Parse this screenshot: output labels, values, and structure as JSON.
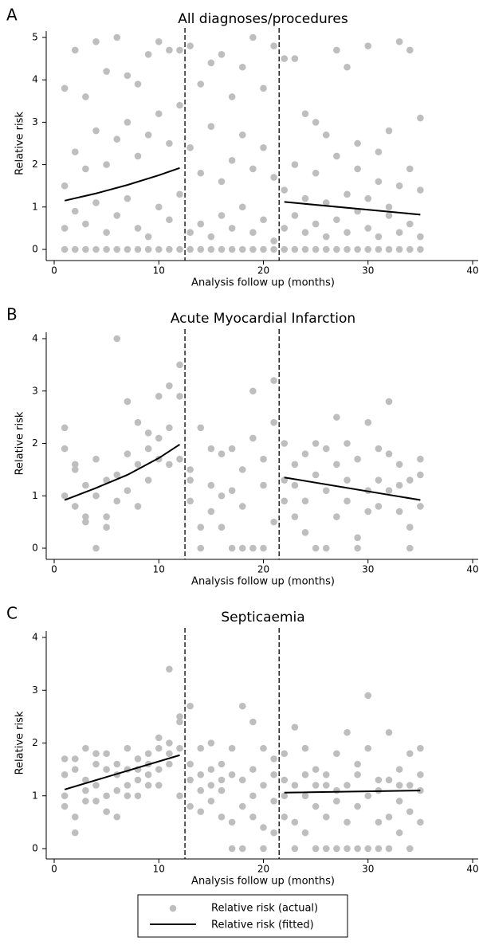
{
  "chart_data": [
    {
      "type": "scatter",
      "panel": "A",
      "title": "All diagnoses/procedures",
      "x_label": "Analysis follow up (months)",
      "y_label": "Relative risk",
      "xlim": [
        0,
        40
      ],
      "xticks": [
        0,
        10,
        20,
        30,
        40
      ],
      "ylim": [
        0,
        5
      ],
      "yticks": [
        0,
        1,
        2,
        3,
        4,
        5
      ],
      "vlines": [
        12.5,
        21.5
      ],
      "series": [
        {
          "name": "Relative risk (actual)",
          "kind": "points",
          "color": "#bebebe",
          "x": [
            1,
            1,
            1,
            1,
            2,
            2,
            2,
            2,
            3,
            3,
            3,
            3,
            4,
            4,
            4,
            4,
            5,
            5,
            5,
            5,
            6,
            6,
            6,
            6,
            7,
            7,
            7,
            7,
            8,
            8,
            8,
            8,
            9,
            9,
            9,
            9,
            10,
            10,
            10,
            10,
            11,
            11,
            11,
            11,
            12,
            12,
            12,
            12,
            13,
            13,
            13,
            13,
            14,
            14,
            14,
            14,
            15,
            15,
            15,
            15,
            16,
            16,
            16,
            16,
            17,
            17,
            17,
            17,
            18,
            18,
            18,
            18,
            19,
            19,
            19,
            19,
            20,
            20,
            20,
            20,
            21,
            21,
            21,
            21,
            22,
            22,
            22,
            22,
            23,
            23,
            23,
            23,
            24,
            24,
            24,
            24,
            25,
            25,
            25,
            25,
            26,
            26,
            26,
            26,
            27,
            27,
            27,
            27,
            28,
            28,
            28,
            28,
            29,
            29,
            29,
            29,
            30,
            30,
            30,
            30,
            31,
            31,
            31,
            31,
            32,
            32,
            32,
            32,
            33,
            33,
            33,
            33,
            34,
            34,
            34,
            34,
            35,
            35,
            35,
            35
          ],
          "values": [
            0,
            0.5,
            1.5,
            3.8,
            0,
            0.9,
            2.3,
            4.7,
            0,
            0.6,
            1.9,
            3.6,
            0,
            1.1,
            2.8,
            4.9,
            0,
            0.4,
            2.0,
            4.2,
            0,
            0.8,
            2.6,
            5.0,
            0,
            1.2,
            3.0,
            4.1,
            0,
            0.5,
            2.2,
            3.9,
            0,
            0.3,
            2.7,
            4.6,
            0,
            1.0,
            3.2,
            4.9,
            0,
            0.7,
            2.5,
            4.7,
            0,
            1.3,
            3.4,
            4.7,
            0,
            0.4,
            2.4,
            4.8,
            0,
            0.6,
            1.8,
            3.9,
            0,
            0.3,
            2.9,
            4.4,
            0,
            0.8,
            1.6,
            4.6,
            0,
            0.5,
            2.1,
            3.6,
            0,
            1.0,
            2.7,
            4.3,
            0,
            0.4,
            1.9,
            5.0,
            0,
            0.7,
            2.4,
            3.8,
            0,
            0.2,
            1.7,
            4.8,
            0,
            0.5,
            1.4,
            4.5,
            0,
            0.8,
            2.0,
            4.5,
            0,
            0.4,
            1.2,
            3.2,
            0,
            0.6,
            1.8,
            3.0,
            0,
            0.3,
            1.1,
            2.7,
            0,
            0.7,
            2.2,
            4.7,
            0,
            0.4,
            1.3,
            4.3,
            0,
            0.9,
            1.9,
            2.5,
            0,
            0.5,
            1.2,
            4.8,
            0,
            0.3,
            1.6,
            2.3,
            0,
            0.8,
            1.0,
            2.8,
            0,
            0.4,
            1.5,
            4.9,
            0,
            0.6,
            1.9,
            4.7,
            0,
            0.3,
            1.4,
            3.1
          ]
        },
        {
          "name": "Relative risk (fitted)",
          "kind": "line",
          "color": "#000000",
          "x": [
            1,
            4,
            7,
            10,
            12,
            null,
            22,
            35
          ],
          "values": [
            1.15,
            1.32,
            1.52,
            1.75,
            1.92,
            null,
            1.12,
            0.82
          ]
        }
      ]
    },
    {
      "type": "scatter",
      "panel": "B",
      "title": "Acute Myocardial Infarction",
      "x_label": "Analysis follow up (months)",
      "y_label": "Relative risk",
      "xlim": [
        0,
        40
      ],
      "xticks": [
        0,
        10,
        20,
        30,
        40
      ],
      "ylim": [
        0,
        4
      ],
      "yticks": [
        0,
        1,
        2,
        3,
        4
      ],
      "vlines": [
        12.5,
        21.5
      ],
      "series": [
        {
          "kind": "points",
          "color": "#bebebe",
          "x": [
            1,
            1,
            1,
            2,
            2,
            2,
            3,
            3,
            3,
            4,
            4,
            4,
            5,
            5,
            5,
            6,
            6,
            6,
            7,
            7,
            7,
            8,
            8,
            8,
            9,
            9,
            9,
            10,
            10,
            10,
            11,
            11,
            11,
            12,
            12,
            12,
            13,
            13,
            13,
            14,
            14,
            14,
            15,
            15,
            15,
            16,
            16,
            16,
            17,
            17,
            17,
            18,
            18,
            18,
            19,
            19,
            19,
            20,
            20,
            20,
            21,
            21,
            21,
            22,
            22,
            22,
            23,
            23,
            23,
            24,
            24,
            24,
            25,
            25,
            25,
            26,
            26,
            26,
            27,
            27,
            27,
            28,
            28,
            28,
            29,
            29,
            29,
            30,
            30,
            30,
            31,
            31,
            31,
            32,
            32,
            32,
            33,
            33,
            33,
            34,
            34,
            34,
            35,
            35,
            35
          ],
          "values": [
            1.0,
            2.3,
            1.9,
            0.8,
            1.5,
            1.6,
            0.5,
            1.2,
            0.6,
            0,
            1.0,
            1.7,
            0.4,
            0.6,
            1.3,
            4.0,
            1.4,
            0.9,
            2.8,
            1.1,
            1.8,
            2.4,
            0.8,
            1.6,
            1.9,
            1.3,
            2.2,
            2.9,
            1.7,
            2.1,
            3.1,
            2.3,
            1.6,
            3.5,
            2.9,
            1.7,
            1.5,
            0.9,
            1.3,
            2.3,
            0.4,
            0,
            1.9,
            1.2,
            0.7,
            1.8,
            1.0,
            0.4,
            0,
            1.1,
            1.9,
            0,
            1.5,
            0.8,
            0,
            3.0,
            2.1,
            1.2,
            1.7,
            0,
            3.2,
            2.4,
            0.5,
            2.0,
            1.3,
            0.9,
            1.6,
            0.6,
            1.2,
            0.3,
            1.8,
            0.9,
            2.0,
            0,
            1.4,
            1.9,
            0,
            1.1,
            2.5,
            1.6,
            0.6,
            2.0,
            0.9,
            1.3,
            0.2,
            1.7,
            0,
            2.4,
            0.7,
            1.1,
            1.3,
            0.8,
            1.9,
            2.8,
            1.8,
            1.1,
            1.6,
            0.7,
            1.2,
            0,
            0.4,
            1.3,
            1.7,
            1.4,
            0.8
          ]
        },
        {
          "kind": "line",
          "color": "#000000",
          "x": [
            1,
            4,
            7,
            10,
            12,
            null,
            22,
            35
          ],
          "values": [
            0.92,
            1.15,
            1.4,
            1.72,
            1.98,
            null,
            1.35,
            0.92
          ]
        }
      ]
    },
    {
      "type": "scatter",
      "panel": "C",
      "title": "Septicaemia",
      "x_label": "Analysis follow up (months)",
      "y_label": "Relative risk",
      "xlim": [
        0,
        40
      ],
      "xticks": [
        0,
        10,
        20,
        30,
        40
      ],
      "ylim": [
        0,
        4
      ],
      "yticks": [
        0,
        1,
        2,
        3,
        4
      ],
      "vlines": [
        12.5,
        21.5
      ],
      "series": [
        {
          "kind": "points",
          "color": "#bebebe",
          "x": [
            1,
            1,
            1,
            1,
            2,
            2,
            2,
            2,
            3,
            3,
            3,
            3,
            4,
            4,
            4,
            4,
            5,
            5,
            5,
            5,
            6,
            6,
            6,
            6,
            7,
            7,
            7,
            7,
            8,
            8,
            8,
            8,
            9,
            9,
            9,
            9,
            10,
            10,
            10,
            10,
            11,
            11,
            11,
            11,
            12,
            12,
            12,
            12,
            13,
            13,
            13,
            13,
            14,
            14,
            14,
            14,
            15,
            15,
            15,
            15,
            16,
            16,
            16,
            16,
            17,
            17,
            17,
            17,
            18,
            18,
            18,
            18,
            19,
            19,
            19,
            19,
            20,
            20,
            20,
            20,
            21,
            21,
            21,
            21,
            22,
            22,
            22,
            22,
            23,
            23,
            23,
            23,
            24,
            24,
            24,
            24,
            25,
            25,
            25,
            25,
            26,
            26,
            26,
            26,
            27,
            27,
            27,
            27,
            28,
            28,
            28,
            28,
            29,
            29,
            29,
            29,
            30,
            30,
            30,
            30,
            31,
            31,
            31,
            31,
            32,
            32,
            32,
            32,
            33,
            33,
            33,
            33,
            34,
            34,
            34,
            34,
            35,
            35,
            35,
            35
          ],
          "values": [
            1.7,
            1.4,
            1.0,
            0.8,
            0.3,
            1.5,
            1.7,
            0.6,
            1.9,
            1.3,
            1.1,
            0.9,
            1.6,
            1.2,
            0.9,
            1.8,
            1.5,
            1.0,
            1.8,
            0.7,
            1.1,
            1.4,
            0.6,
            1.6,
            1.9,
            1.5,
            1.2,
            1.0,
            1.7,
            1.3,
            1.0,
            1.5,
            1.8,
            1.4,
            1.2,
            1.6,
            2.1,
            1.5,
            1.9,
            1.2,
            3.4,
            2.0,
            1.6,
            1.8,
            2.5,
            1.9,
            1.0,
            2.4,
            2.7,
            1.6,
            1.3,
            0.8,
            1.9,
            1.4,
            1.1,
            0.7,
            2.0,
            1.5,
            1.2,
            0.9,
            1.6,
            1.1,
            0.6,
            1.3,
            1.9,
            0.5,
            0,
            1.4,
            2.7,
            1.3,
            0.8,
            0,
            2.4,
            1.5,
            0.6,
            1.0,
            1.9,
            1.2,
            0,
            0.4,
            1.4,
            0.9,
            0.3,
            1.7,
            1.3,
            1.0,
            0.6,
            1.8,
            2.3,
            1.2,
            0.5,
            0,
            1.9,
            1.0,
            0.3,
            1.4,
            1.5,
            0,
            0.8,
            1.2,
            1.2,
            0.6,
            0,
            1.4,
            1.8,
            0.9,
            0,
            1.1,
            2.2,
            1.2,
            0.5,
            0,
            1.4,
            0.8,
            0,
            1.6,
            2.9,
            1.9,
            1.0,
            0,
            1.3,
            0.5,
            0,
            1.1,
            2.2,
            1.3,
            0.6,
            0,
            1.5,
            0.9,
            0.3,
            1.2,
            1.8,
            1.2,
            0,
            0.7,
            1.9,
            1.4,
            0.5,
            1.1
          ]
        },
        {
          "kind": "line",
          "color": "#000000",
          "x": [
            1,
            12,
            null,
            22,
            35
          ],
          "values": [
            1.12,
            1.77,
            null,
            1.06,
            1.1
          ]
        }
      ]
    }
  ]
}
